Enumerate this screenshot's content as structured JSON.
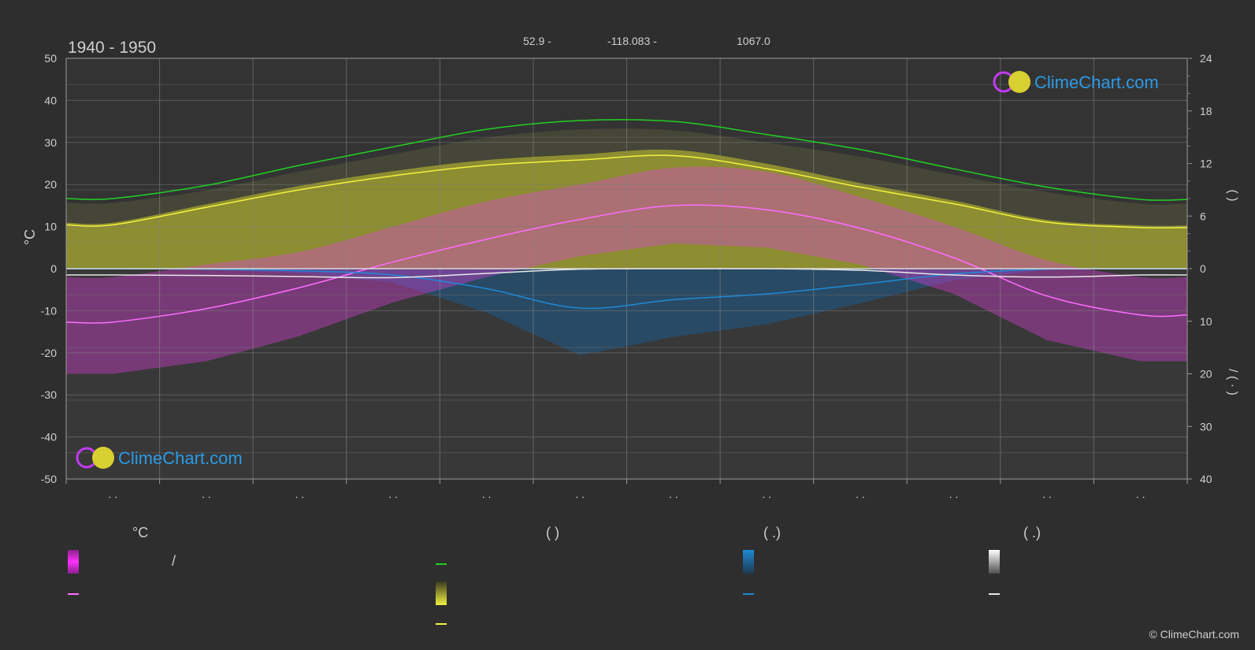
{
  "header": {
    "period": "1940 - 1950",
    "lat": "52.9 -",
    "lon": "-118.083 -",
    "elevation": "1067.0"
  },
  "logo_text": "ClimeChart.com",
  "copyright": "© ClimeChart.com",
  "legend": {
    "temp_title": "°C",
    "daylight_title": "(          )",
    "rain_title": "(   .)",
    "snow_title": "(   .)",
    "temp_range_sep": "/"
  },
  "colors": {
    "background": "#2e2e2e",
    "temp_range": "#e040e0",
    "temp_mean": "#ff6cff",
    "daylight": "#22d022",
    "sunshine": "#f2f240",
    "sunshine_fill": "#9a9a30",
    "rain": "#1e8ad6",
    "snow": "#e8e8e8"
  },
  "chart_data": {
    "type": "line",
    "x_months": 12,
    "x_tick_labels": [
      ". .",
      ". .",
      ". .",
      ". .",
      ". .",
      ". .",
      ". .",
      ". .",
      ". .",
      ". .",
      ". .",
      ". ."
    ],
    "left_axis": {
      "unit": "°C",
      "ylim": [
        -50,
        50
      ],
      "ticks": [
        50,
        40,
        30,
        20,
        10,
        0,
        -10,
        -20,
        -30,
        -40,
        -50
      ]
    },
    "right_axis_top": {
      "ylim": [
        0,
        24
      ],
      "ticks": [
        24,
        18,
        12,
        6,
        0
      ],
      "label": "(   )"
    },
    "right_axis_bottom": {
      "ylim": [
        0,
        40
      ],
      "ticks": [
        0,
        10,
        20,
        30,
        40
      ],
      "label": "/ (  ·  )"
    },
    "grid": true,
    "series": [
      {
        "key": "daylight",
        "values": [
          8.0,
          9.5,
          11.8,
          13.9,
          15.9,
          16.9,
          16.8,
          15.3,
          13.6,
          11.4,
          9.3,
          7.9
        ]
      },
      {
        "key": "sunshine",
        "values": [
          5.0,
          7.0,
          9.0,
          10.6,
          11.8,
          12.4,
          12.9,
          11.4,
          9.3,
          7.4,
          5.3,
          4.7
        ]
      },
      {
        "key": "temp_mean",
        "values": [
          -12.7,
          -9.5,
          -4.5,
          1.6,
          7.0,
          11.7,
          15.0,
          14.0,
          9.6,
          2.6,
          -6.5,
          -11.0
        ]
      },
      {
        "key": "rain",
        "values": [
          0.0,
          0.1,
          0.4,
          1.2,
          3.8,
          7.5,
          5.9,
          4.8,
          3.0,
          1.0,
          0.1,
          0.0
        ]
      },
      {
        "key": "snow",
        "values": [
          1.2,
          1.3,
          1.5,
          1.7,
          0.9,
          0.1,
          0.0,
          0.0,
          0.3,
          1.2,
          1.6,
          1.2
        ]
      }
    ],
    "temp_range_max": [
      -2,
      1,
      4,
      10,
      16,
      20,
      24,
      23,
      17,
      10,
      2,
      -2
    ],
    "temp_range_min": [
      -25,
      -22,
      -16,
      -8,
      -2,
      3,
      6,
      5,
      1,
      -6,
      -17,
      -22
    ]
  }
}
